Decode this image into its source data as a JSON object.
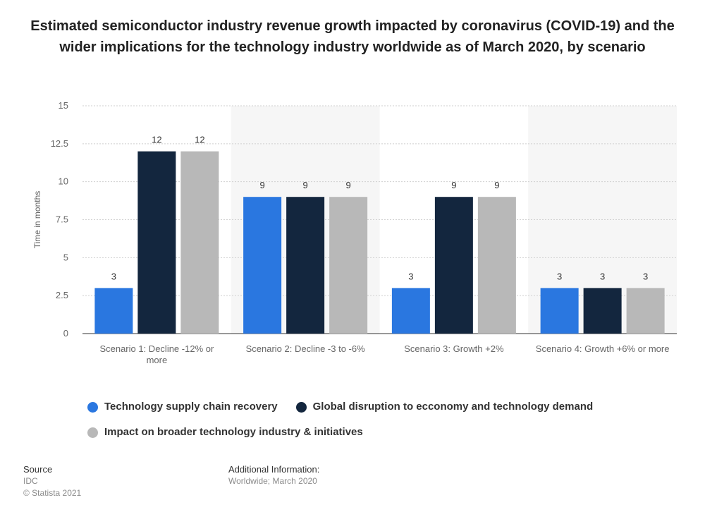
{
  "title": "Estimated semiconductor industry revenue growth impacted by coronavirus (COVID-19) and the wider implications for the technology industry worldwide as of March 2020, by scenario",
  "chart_data": {
    "type": "bar",
    "categories": [
      "Scenario 1: Decline -12% or more",
      "Scenario 2: Decline -3 to -6%",
      "Scenario 3: Growth +2%",
      "Scenario 4: Growth +6% or more"
    ],
    "series": [
      {
        "name": "Technology supply chain recovery",
        "values": [
          3,
          9,
          3,
          3
        ],
        "color": "#2a77e0"
      },
      {
        "name": "Global disruption to ecconomy and technology demand",
        "values": [
          12,
          9,
          9,
          3
        ],
        "color": "#13263e"
      },
      {
        "name": "Impact on broader technology industry & initiatives",
        "values": [
          12,
          9,
          9,
          3
        ],
        "color": "#b8b8b8"
      }
    ],
    "ylabel": "Time in months",
    "xlabel": "",
    "ylim": [
      0,
      15
    ],
    "yticks": [
      "0",
      "2.5",
      "5",
      "7.5",
      "10",
      "12.5",
      "15"
    ],
    "grid": true,
    "legend_position": "bottom"
  },
  "footer": {
    "source_label": "Source",
    "source_value": "IDC",
    "copyright": "© Statista 2021",
    "additional_label": "Additional Information:",
    "additional_value": "Worldwide; March 2020"
  }
}
